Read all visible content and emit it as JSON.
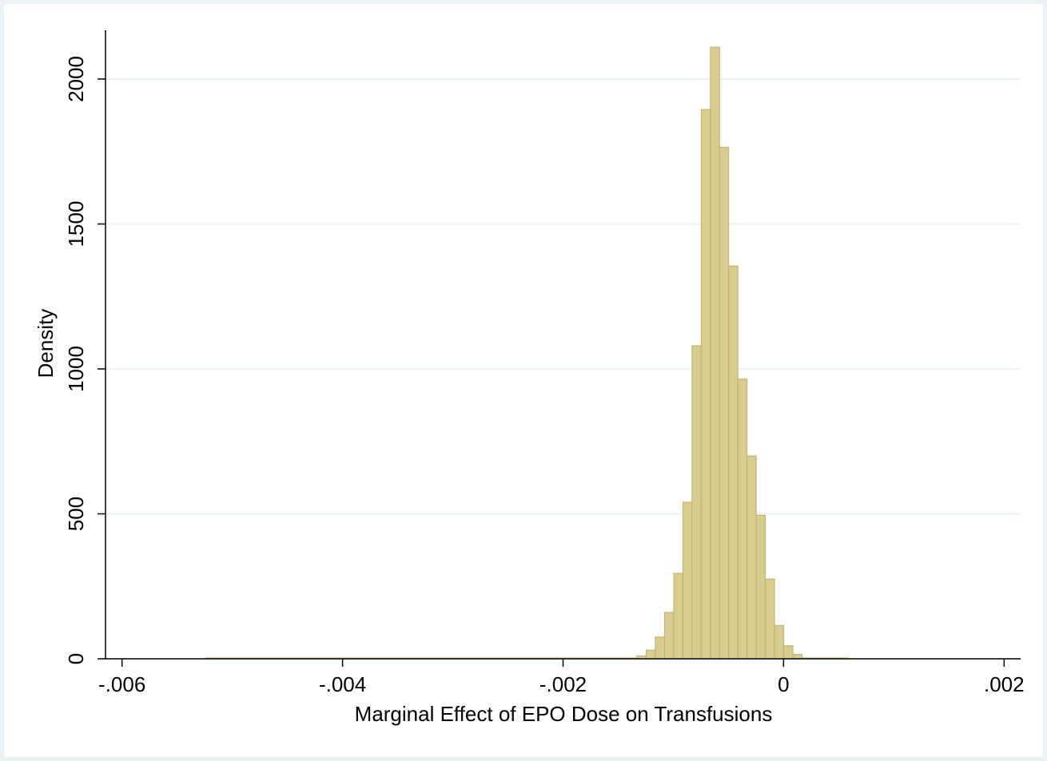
{
  "chart_data": {
    "type": "histogram",
    "xlabel": "Marginal Effect of EPO Dose on Transfusions",
    "ylabel": "Density",
    "bins": [
      -0.00524,
      -0.0051568,
      -0.0050736,
      -0.0049904,
      -0.0049072,
      -0.004824,
      -0.0047408,
      -0.0046576,
      -0.0045744,
      -0.0044912,
      -0.004408,
      -0.0043248,
      -0.0042416,
      -0.0041584,
      -0.0040752,
      -0.003992,
      -0.0039088,
      -0.0038256,
      -0.0037424,
      -0.0036592,
      -0.003576,
      -0.0034928,
      -0.0034096,
      -0.0033264,
      -0.0032432,
      -0.00316,
      -0.0030768,
      -0.0029936,
      -0.0029104,
      -0.0028272,
      -0.002744,
      -0.0026608,
      -0.0025776,
      -0.0024944,
      -0.0024112,
      -0.002328,
      -0.0022448,
      -0.0021616,
      -0.0020784,
      -0.0019952,
      -0.001912,
      -0.0018288,
      -0.0017456,
      -0.0016624,
      -0.0015792,
      -0.001496,
      -0.0014128,
      -0.0013296,
      -0.0012464,
      -0.0011632,
      -0.00108,
      -0.0009968,
      -0.0009136,
      -0.0008304,
      -0.0007472,
      -0.000664,
      -0.0005808,
      -0.0004976,
      -0.0004144,
      -0.0003312,
      -0.000248,
      -0.0001648,
      -8.16e-05,
      1.6e-06,
      8.48e-05,
      0.000168,
      0.0002512,
      0.0003344,
      0.0004176,
      0.0005008,
      0.000584
    ],
    "values": [
      3,
      3,
      3,
      3,
      3,
      3,
      3,
      3,
      3,
      3,
      3,
      3,
      3,
      3,
      3,
      3,
      3,
      3,
      3,
      3,
      3,
      3,
      3,
      3,
      3,
      3,
      3,
      3,
      3,
      3,
      3,
      3,
      3,
      3,
      3,
      3,
      3,
      3,
      3,
      3,
      3,
      3,
      3,
      3,
      3,
      3,
      3,
      10,
      30,
      75,
      160,
      295,
      540,
      1080,
      1895,
      2110,
      1765,
      1355,
      965,
      700,
      495,
      275,
      115,
      45,
      15,
      3,
      3,
      3,
      3,
      3
    ],
    "color": "#d8cd8f",
    "edgecolor": "#bfb16c",
    "xlim": [
      -0.00615,
      0.00215
    ],
    "xticks": [
      {
        "value": -0.006,
        "label": "-.006"
      },
      {
        "value": -0.004,
        "label": "-.004"
      },
      {
        "value": -0.002,
        "label": "-.002"
      },
      0,
      {
        "value": 0.002,
        "label": ".002"
      }
    ],
    "ylim": [
      0,
      2168
    ],
    "yticks": [
      0,
      500,
      1000,
      1500,
      2000
    ],
    "grid": true
  }
}
